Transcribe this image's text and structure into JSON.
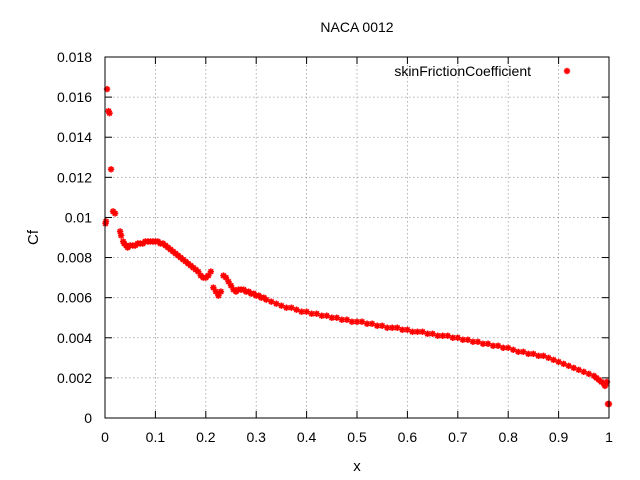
{
  "chart_data": {
    "type": "scatter",
    "title": "NACA 0012",
    "xlabel": "x",
    "ylabel": "Cf",
    "xlim": [
      0,
      1
    ],
    "ylim": [
      0,
      0.018
    ],
    "xticks": [
      "0",
      "0.1",
      "0.2",
      "0.3",
      "0.4",
      "0.5",
      "0.6",
      "0.7",
      "0.8",
      "0.9",
      "1"
    ],
    "yticks": [
      "0",
      "0.002",
      "0.004",
      "0.006",
      "0.008",
      "0.01",
      "0.012",
      "0.014",
      "0.016",
      "0.018"
    ],
    "grid": true,
    "legend_position": "top-right",
    "series": [
      {
        "name": "skinFrictionCoefficient",
        "color": "#ff0000",
        "marker": "star",
        "x": [
          0.001,
          0.002,
          0.004,
          0.007,
          0.009,
          0.012,
          0.016,
          0.02,
          0.03,
          0.032,
          0.036,
          0.038,
          0.042,
          0.045,
          0.05,
          0.055,
          0.06,
          0.065,
          0.07,
          0.075,
          0.08,
          0.085,
          0.09,
          0.095,
          0.1,
          0.105,
          0.11,
          0.115,
          0.12,
          0.125,
          0.13,
          0.135,
          0.14,
          0.145,
          0.15,
          0.155,
          0.16,
          0.165,
          0.17,
          0.175,
          0.18,
          0.185,
          0.19,
          0.195,
          0.2,
          0.205,
          0.21,
          0.215,
          0.22,
          0.225,
          0.23,
          0.235,
          0.24,
          0.245,
          0.25,
          0.255,
          0.26,
          0.265,
          0.27,
          0.275,
          0.28,
          0.285,
          0.29,
          0.295,
          0.3,
          0.305,
          0.31,
          0.315,
          0.32,
          0.33,
          0.34,
          0.35,
          0.36,
          0.37,
          0.38,
          0.39,
          0.4,
          0.41,
          0.42,
          0.43,
          0.44,
          0.45,
          0.46,
          0.47,
          0.48,
          0.49,
          0.5,
          0.51,
          0.52,
          0.53,
          0.54,
          0.55,
          0.56,
          0.57,
          0.58,
          0.59,
          0.6,
          0.61,
          0.62,
          0.63,
          0.64,
          0.65,
          0.66,
          0.67,
          0.68,
          0.69,
          0.7,
          0.71,
          0.72,
          0.73,
          0.74,
          0.75,
          0.76,
          0.77,
          0.78,
          0.79,
          0.8,
          0.81,
          0.82,
          0.83,
          0.84,
          0.85,
          0.86,
          0.87,
          0.88,
          0.89,
          0.9,
          0.91,
          0.92,
          0.93,
          0.94,
          0.95,
          0.96,
          0.97,
          0.975,
          0.98,
          0.985,
          0.99,
          0.992,
          0.994,
          0.996,
          0.998,
          1.0
        ],
        "values": [
          0.0097,
          0.0098,
          0.0164,
          0.0153,
          0.0152,
          0.0124,
          0.0103,
          0.0102,
          0.0093,
          0.0091,
          0.0088,
          0.0087,
          0.0086,
          0.0085,
          0.0086,
          0.0086,
          0.0086,
          0.0087,
          0.0087,
          0.0087,
          0.0088,
          0.0088,
          0.0088,
          0.0088,
          0.0088,
          0.0088,
          0.0087,
          0.0087,
          0.0086,
          0.0085,
          0.0084,
          0.0083,
          0.0082,
          0.0081,
          0.008,
          0.0079,
          0.0078,
          0.0077,
          0.0076,
          0.0075,
          0.0074,
          0.0073,
          0.0071,
          0.007,
          0.007,
          0.0071,
          0.0073,
          0.0065,
          0.0063,
          0.0061,
          0.0063,
          0.0071,
          0.007,
          0.0068,
          0.0066,
          0.0064,
          0.0063,
          0.0064,
          0.0064,
          0.0064,
          0.0063,
          0.0063,
          0.0062,
          0.0062,
          0.0061,
          0.0061,
          0.006,
          0.006,
          0.0059,
          0.0058,
          0.0057,
          0.0056,
          0.0055,
          0.0055,
          0.0054,
          0.0053,
          0.0053,
          0.0052,
          0.0052,
          0.0051,
          0.0051,
          0.005,
          0.005,
          0.0049,
          0.0049,
          0.0048,
          0.0048,
          0.0048,
          0.0047,
          0.0047,
          0.0046,
          0.0046,
          0.0045,
          0.0045,
          0.0045,
          0.0044,
          0.0044,
          0.0043,
          0.0043,
          0.0043,
          0.0042,
          0.0042,
          0.0041,
          0.0041,
          0.0041,
          0.004,
          0.004,
          0.0039,
          0.0039,
          0.0038,
          0.0038,
          0.0037,
          0.0037,
          0.0036,
          0.0036,
          0.0035,
          0.0035,
          0.0034,
          0.0033,
          0.0033,
          0.0032,
          0.0032,
          0.0031,
          0.0031,
          0.003,
          0.0029,
          0.0028,
          0.0027,
          0.0026,
          0.0025,
          0.0024,
          0.0023,
          0.0022,
          0.0021,
          0.002,
          0.0019,
          0.0018,
          0.0017,
          0.0016,
          0.0017,
          0.0018,
          0.0007,
          0.0007
        ]
      }
    ]
  }
}
